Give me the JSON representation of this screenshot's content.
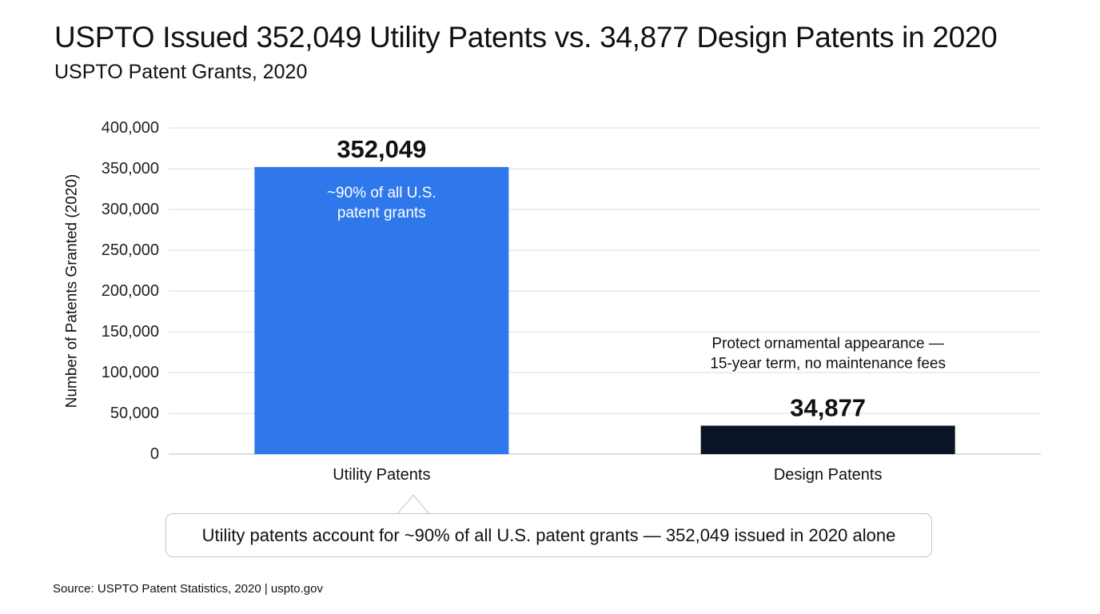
{
  "header": {
    "title": "USPTO Issued 352,049 Utility Patents vs. 34,877 Design Patents in 2020",
    "subtitle": "USPTO Patent Grants, 2020"
  },
  "chart_data": {
    "type": "bar",
    "title": "USPTO Issued 352,049 Utility Patents vs. 34,877 Design Patents in 2020",
    "subtitle": "USPTO Patent Grants, 2020",
    "categories": [
      "Utility Patents",
      "Design Patents"
    ],
    "values": [
      352049,
      34877
    ],
    "value_labels": [
      "352,049",
      "34,877"
    ],
    "bar_colors": [
      "#2f78ec",
      "#0b1326"
    ],
    "xlabel": "",
    "ylabel": "Number of Patents Granted (2020)",
    "ylim": [
      0,
      400000
    ],
    "yticks": [
      0,
      50000,
      100000,
      150000,
      200000,
      250000,
      300000,
      350000,
      400000
    ],
    "ytick_labels": [
      "0",
      "50,000",
      "100,000",
      "150,000",
      "200,000",
      "250,000",
      "300,000",
      "350,000",
      "400,000"
    ],
    "grid": true,
    "legend": "none",
    "annotations": [
      {
        "category": "Utility Patents",
        "placement": "inside-top",
        "lines": [
          "~90% of all U.S.",
          "patent grants"
        ]
      },
      {
        "category": "Design Patents",
        "placement": "above",
        "lines": [
          "Protect ornamental appearance —",
          "15-year term, no maintenance fees"
        ]
      }
    ]
  },
  "callout": {
    "text": "Utility patents account for ~90% of all U.S. patent grants — 352,049 issued in 2020 alone"
  },
  "footer": {
    "source": "Source: USPTO Patent Statistics, 2020 | uspto.gov"
  }
}
